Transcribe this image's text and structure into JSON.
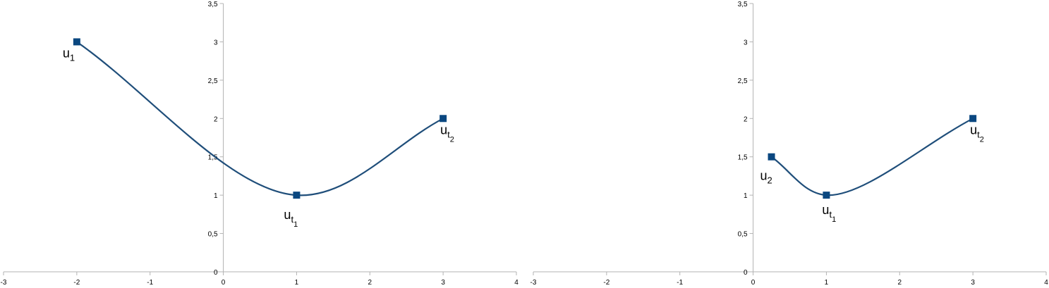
{
  "chart_data": [
    {
      "type": "line",
      "smooth": true,
      "xlim": [
        -3,
        4
      ],
      "ylim": [
        0,
        3.5
      ],
      "x_ticks": [
        "-3",
        "-2",
        "-1",
        "0",
        "1",
        "2",
        "3",
        "4"
      ],
      "y_ticks": [
        "0",
        "0,5",
        "1",
        "1,5",
        "2",
        "2,5",
        "3",
        "3,5"
      ],
      "grid": false,
      "line_color": "#1f4e7a",
      "marker_color": "#0a4780",
      "series": [
        {
          "x": [
            -2,
            1,
            3
          ],
          "y": [
            3,
            1,
            2
          ],
          "labels": [
            {
              "base": "u",
              "sub": "1",
              "subsub": ""
            },
            {
              "base": "u",
              "sub": "t",
              "subsub": "1"
            },
            {
              "base": "u",
              "sub": "t",
              "subsub": "2"
            }
          ]
        }
      ]
    },
    {
      "type": "line",
      "smooth": true,
      "xlim": [
        -3,
        4
      ],
      "ylim": [
        0,
        3.5
      ],
      "x_ticks": [
        "-3",
        "-2",
        "-1",
        "0",
        "1",
        "2",
        "3",
        "4"
      ],
      "y_ticks": [
        "0",
        "0,5",
        "1",
        "1,5",
        "2",
        "2,5",
        "3",
        "3,5"
      ],
      "grid": false,
      "line_color": "#1f4e7a",
      "marker_color": "#0a4780",
      "series": [
        {
          "x": [
            0.25,
            1,
            3
          ],
          "y": [
            1.5,
            1,
            2
          ],
          "labels": [
            {
              "base": "u",
              "sub": "2",
              "subsub": ""
            },
            {
              "base": "u",
              "sub": "t",
              "subsub": "1"
            },
            {
              "base": "u",
              "sub": "t",
              "subsub": "2"
            }
          ]
        }
      ]
    }
  ]
}
